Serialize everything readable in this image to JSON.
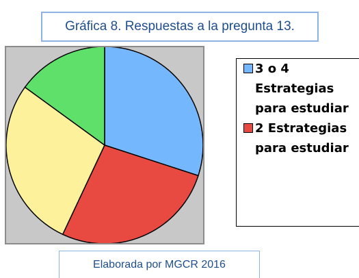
{
  "chart_data": {
    "type": "pie",
    "title": "Gráfica 8. Respuestas a la pregunta 13.",
    "categories": [
      "3 o 4 Estrategias para estudiar",
      "2 Estrategias para estudiar",
      null,
      null
    ],
    "values": [
      30,
      27,
      28,
      15
    ],
    "colors": [
      "#75b7fd",
      "#e84a42",
      "#fdf29b",
      "#5fe06a"
    ],
    "legend": "right",
    "note": "Elaborada por MGCR 2016"
  }
}
